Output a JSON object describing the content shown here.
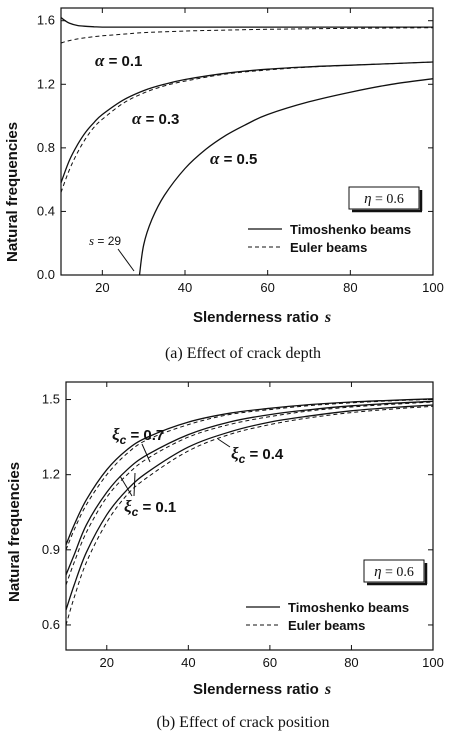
{
  "chart_data": [
    {
      "type": "line",
      "caption": "(a)  Effect of crack depth",
      "xlabel": "Slenderness ratio",
      "xlabel_var": "s",
      "ylabel": "Natural frequencies",
      "xlim": [
        10,
        100
      ],
      "ylim": [
        0,
        1.68
      ],
      "xticks": [
        "20",
        "40",
        "60",
        "80",
        "100"
      ],
      "yticks": [
        "0.0",
        "0.4",
        "0.8",
        "1.2",
        "1.6"
      ],
      "legend": [
        {
          "label": "Timoshenko beams",
          "style": "solid"
        },
        {
          "label": "Euler beams",
          "style": "dashed"
        }
      ],
      "legend_position": "bottom-right",
      "parameter_box": {
        "symbol": "η",
        "text": " = 0.6"
      },
      "annotations": [
        {
          "symbol": "α",
          "text": " = 0.1"
        },
        {
          "symbol": "α",
          "text": " = 0.3"
        },
        {
          "symbol": "α",
          "text": " = 0.5"
        },
        {
          "symbol": "s",
          "text": " = 29"
        }
      ],
      "series": [
        {
          "style": "solid",
          "x": [
            10,
            11,
            12,
            14,
            16,
            18,
            20,
            25,
            30,
            40,
            60,
            80,
            100
          ],
          "y": [
            1.62,
            1.6,
            1.585,
            1.57,
            1.565,
            1.562,
            1.56,
            1.56,
            1.56,
            1.56,
            1.56,
            1.56,
            1.56
          ]
        },
        {
          "style": "dashed",
          "x": [
            10,
            12,
            15,
            20,
            25,
            30,
            40,
            50,
            60,
            80,
            100
          ],
          "y": [
            1.46,
            1.475,
            1.49,
            1.505,
            1.515,
            1.525,
            1.535,
            1.541,
            1.546,
            1.552,
            1.556
          ]
        },
        {
          "style": "solid",
          "x": [
            10,
            12,
            14,
            16,
            18,
            20,
            25,
            30,
            35,
            40,
            50,
            60,
            70,
            80,
            90,
            100
          ],
          "y": [
            0.58,
            0.72,
            0.82,
            0.9,
            0.96,
            1.01,
            1.1,
            1.16,
            1.2,
            1.23,
            1.27,
            1.295,
            1.31,
            1.32,
            1.33,
            1.34
          ]
        },
        {
          "style": "dashed",
          "x": [
            10,
            12,
            14,
            16,
            18,
            20,
            25,
            30,
            35,
            40,
            50,
            60,
            70,
            80,
            90,
            100
          ],
          "y": [
            0.52,
            0.66,
            0.77,
            0.86,
            0.93,
            0.98,
            1.08,
            1.145,
            1.19,
            1.22,
            1.265,
            1.29,
            1.308,
            1.32,
            1.33,
            1.34
          ]
        },
        {
          "style": "solid",
          "x": [
            29,
            30,
            32,
            35,
            40,
            45,
            50,
            55,
            60,
            70,
            80,
            90,
            100
          ],
          "y": [
            0,
            0.19,
            0.35,
            0.5,
            0.67,
            0.79,
            0.88,
            0.95,
            1.01,
            1.09,
            1.15,
            1.2,
            1.235
          ]
        }
      ]
    },
    {
      "type": "line",
      "caption": "(b)  Effect of crack position",
      "xlabel": "Slenderness ratio",
      "xlabel_var": "s",
      "ylabel": "Natural frequencies",
      "xlim": [
        10,
        100
      ],
      "ylim": [
        0.5,
        1.57
      ],
      "xticks": [
        "20",
        "40",
        "60",
        "80",
        "100"
      ],
      "yticks": [
        "0.6",
        "0.9",
        "1.2",
        "1.5"
      ],
      "legend": [
        {
          "label": "Timoshenko beams",
          "style": "solid"
        },
        {
          "label": "Euler beams",
          "style": "dashed"
        }
      ],
      "legend_position": "bottom-right",
      "parameter_box": {
        "symbol": "η",
        "text": " = 0.6"
      },
      "annotations": [
        {
          "symbol": "ξ",
          "sub": "c",
          "text": " = 0.7"
        },
        {
          "symbol": "ξ",
          "sub": "c",
          "text": " = 0.4"
        },
        {
          "symbol": "ξ",
          "sub": "c",
          "text": " = 0.1"
        }
      ],
      "series": [
        {
          "style": "solid",
          "x": [
            10,
            12,
            15,
            20,
            25,
            30,
            40,
            50,
            60,
            70,
            80,
            90,
            100
          ],
          "y": [
            0.92,
            1.0,
            1.1,
            1.22,
            1.3,
            1.35,
            1.41,
            1.445,
            1.465,
            1.48,
            1.49,
            1.497,
            1.503
          ]
        },
        {
          "style": "dashed",
          "x": [
            10,
            12,
            15,
            20,
            25,
            30,
            40,
            50,
            60,
            70,
            80,
            90,
            100
          ],
          "y": [
            0.9,
            0.98,
            1.08,
            1.2,
            1.285,
            1.34,
            1.4,
            1.44,
            1.46,
            1.476,
            1.487,
            1.495,
            1.501
          ]
        },
        {
          "style": "solid",
          "x": [
            10,
            12,
            15,
            20,
            25,
            30,
            40,
            50,
            60,
            70,
            80,
            90,
            100
          ],
          "y": [
            0.8,
            0.88,
            1.0,
            1.13,
            1.22,
            1.28,
            1.36,
            1.41,
            1.44,
            1.46,
            1.475,
            1.485,
            1.493
          ]
        },
        {
          "style": "dashed",
          "x": [
            10,
            12,
            15,
            20,
            25,
            30,
            40,
            50,
            60,
            70,
            80,
            90,
            100
          ],
          "y": [
            0.76,
            0.85,
            0.97,
            1.11,
            1.2,
            1.265,
            1.35,
            1.4,
            1.432,
            1.455,
            1.47,
            1.481,
            1.49
          ]
        },
        {
          "style": "solid",
          "x": [
            10,
            12,
            15,
            20,
            25,
            30,
            40,
            50,
            60,
            70,
            80,
            90,
            100
          ],
          "y": [
            0.66,
            0.76,
            0.89,
            1.04,
            1.14,
            1.21,
            1.31,
            1.37,
            1.41,
            1.435,
            1.455,
            1.468,
            1.478
          ]
        },
        {
          "style": "dashed",
          "x": [
            10,
            12,
            15,
            20,
            25,
            30,
            40,
            50,
            60,
            70,
            80,
            90,
            100
          ],
          "y": [
            0.6,
            0.71,
            0.85,
            1.01,
            1.12,
            1.19,
            1.295,
            1.36,
            1.4,
            1.428,
            1.448,
            1.462,
            1.473
          ]
        }
      ]
    }
  ]
}
